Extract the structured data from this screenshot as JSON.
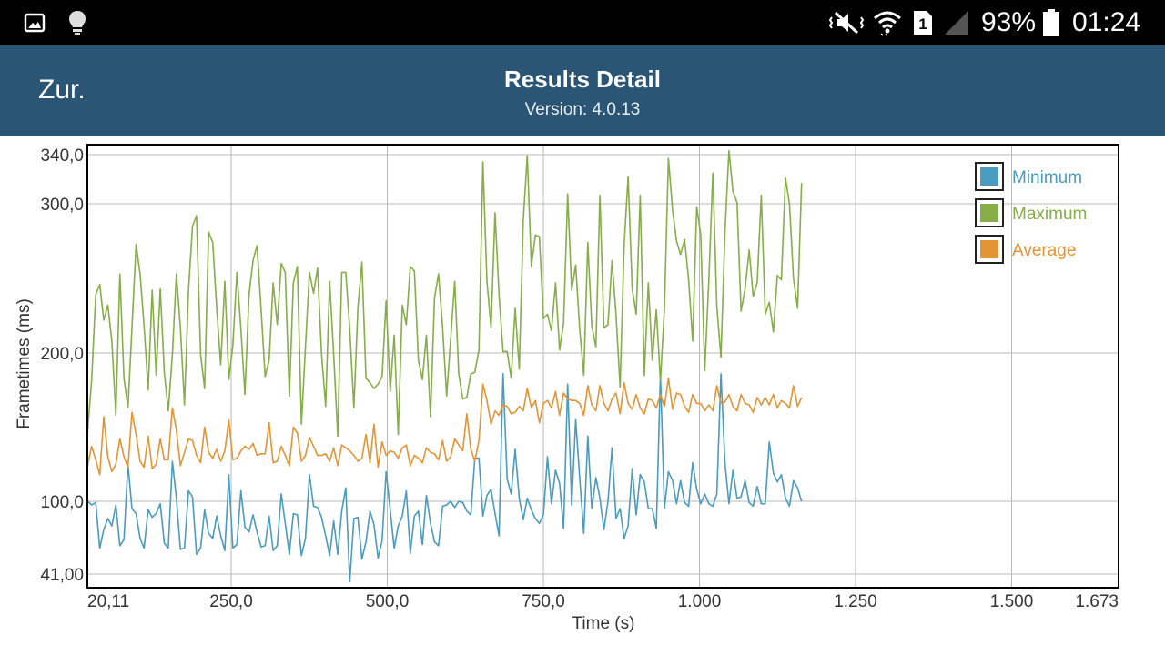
{
  "status_bar": {
    "battery": "93%",
    "time": "01:24",
    "icons": [
      "gallery-icon",
      "lightbulb-icon",
      "mute-vibrate-icon",
      "wifi-icon",
      "sim-1-icon",
      "signal-icon",
      "battery-icon"
    ],
    "sim_slot": "1"
  },
  "app_bar": {
    "back_label": "Zur.",
    "title": "Results Detail",
    "version": "Version: 4.0.13"
  },
  "chart_data": {
    "type": "line",
    "xlabel": "Time (s)",
    "ylabel": "Frametimes (ms)",
    "xlim": [
      20.11,
      1673
    ],
    "ylim": [
      32,
      345
    ],
    "x_ticks": [
      20.11,
      250,
      500,
      750,
      1000,
      1250,
      1500,
      1673
    ],
    "x_tick_labels": [
      "20,11",
      "250,0",
      "500,0",
      "750,0",
      "1.000",
      "1.250",
      "1.500",
      "1.673"
    ],
    "y_ticks": [
      41,
      100,
      200,
      300,
      340
    ],
    "y_tick_labels": [
      "41,00",
      "100,0",
      "200,0",
      "300,0",
      "340,0"
    ],
    "grid": true,
    "legend_position": "top-right",
    "x_start": 20.11,
    "x_step": 6.46,
    "series": [
      {
        "name": "Minimum",
        "color": "#4a9bbd",
        "values": [
          100,
          97,
          99,
          62,
          77,
          86,
          80,
          97,
          64,
          69,
          125,
          94,
          90,
          70,
          62,
          93,
          87,
          90,
          98,
          66,
          62,
          127,
          102,
          61,
          62,
          107,
          103,
          57,
          62,
          93,
          74,
          70,
          88,
          72,
          60,
          118,
          62,
          65,
          107,
          79,
          75,
          89,
          75,
          63,
          64,
          88,
          60,
          64,
          105,
          82,
          57,
          90,
          89,
          56,
          70,
          118,
          96,
          95,
          87,
          72,
          56,
          84,
          57,
          92,
          109,
          36,
          86,
          87,
          53,
          67,
          92,
          81,
          54,
          68,
          120,
          93,
          62,
          80,
          88,
          107,
          58,
          88,
          92,
          65,
          104,
          82,
          67,
          64,
          96,
          97,
          100,
          95,
          100,
          99,
          92,
          89,
          129,
          129,
          88,
          104,
          108,
          90,
          72,
          186,
          115,
          105,
          135,
          102,
          85,
          102,
          93,
          86,
          82,
          89,
          130,
          98,
          121,
          112,
          78,
          179,
          97,
          155,
          116,
          74,
          144,
          94,
          116,
          102,
          77,
          100,
          136,
          86,
          94,
          70,
          80,
          122,
          89,
          118,
          113,
          94,
          94,
          78,
          186,
          94,
          120,
          114,
          98,
          114,
          99,
          96,
          126,
          108,
          98,
          105,
          98,
          96,
          105,
          186,
          126,
          98,
          121,
          102,
          103,
          114,
          99,
          96,
          110,
          98,
          98,
          140,
          119,
          113,
          118,
          102,
          96,
          114,
          109,
          100
        ]
      },
      {
        "name": "Maximum",
        "color": "#86ad48",
        "values": [
          147,
          182,
          239,
          246,
          222,
          232,
          208,
          158,
          253,
          183,
          163,
          217,
          273,
          253,
          218,
          175,
          242,
          185,
          243,
          187,
          161,
          199,
          253,
          217,
          165,
          242,
          285,
          292,
          199,
          176,
          281,
          274,
          230,
          192,
          248,
          182,
          205,
          254,
          216,
          172,
          239,
          262,
          272,
          229,
          184,
          195,
          247,
          219,
          260,
          254,
          171,
          247,
          258,
          152,
          204,
          254,
          240,
          257,
          199,
          164,
          248,
          199,
          144,
          254,
          254,
          216,
          163,
          230,
          261,
          183,
          180,
          176,
          179,
          184,
          235,
          174,
          212,
          145,
          232,
          219,
          258,
          255,
          195,
          182,
          212,
          157,
          237,
          253,
          217,
          171,
          209,
          248,
          186,
          169,
          170,
          186,
          187,
          202,
          334,
          248,
          217,
          294,
          239,
          201,
          201,
          183,
          230,
          189,
          289,
          339,
          258,
          279,
          278,
          223,
          226,
          215,
          247,
          202,
          220,
          308,
          242,
          259,
          216,
          185,
          274,
          218,
          204,
          307,
          217,
          219,
          262,
          226,
          177,
          272,
          322,
          243,
          226,
          307,
          185,
          247,
          195,
          229,
          181,
          230,
          337,
          296,
          275,
          266,
          276,
          249,
          208,
          298,
          279,
          188,
          249,
          325,
          231,
          197,
          281,
          342,
          310,
          301,
          228,
          243,
          269,
          238,
          247,
          307,
          226,
          234,
          214,
          252,
          249,
          321,
          300,
          250,
          230,
          317
        ]
      },
      {
        "name": "Average",
        "color": "#e39535",
        "values": [
          124,
          137,
          128,
          118,
          157,
          130,
          120,
          125,
          142,
          130,
          123,
          160,
          145,
          127,
          123,
          144,
          122,
          125,
          142,
          128,
          128,
          163,
          148,
          124,
          133,
          142,
          141,
          131,
          126,
          150,
          133,
          129,
          135,
          127,
          134,
          155,
          128,
          129,
          134,
          137,
          135,
          139,
          131,
          132,
          132,
          153,
          126,
          127,
          137,
          131,
          124,
          150,
          146,
          127,
          131,
          143,
          137,
          131,
          131,
          132,
          127,
          136,
          124,
          138,
          136,
          134,
          131,
          127,
          129,
          145,
          126,
          152,
          123,
          140,
          131,
          134,
          133,
          129,
          136,
          138,
          124,
          131,
          129,
          126,
          136,
          133,
          132,
          128,
          141,
          127,
          130,
          142,
          138,
          134,
          159,
          135,
          127,
          141,
          179,
          168,
          152,
          161,
          158,
          165,
          164,
          159,
          160,
          164,
          161,
          176,
          163,
          168,
          153,
          166,
          168,
          163,
          174,
          158,
          173,
          169,
          168,
          168,
          166,
          158,
          178,
          165,
          161,
          178,
          166,
          161,
          169,
          173,
          159,
          180,
          166,
          162,
          172,
          163,
          159,
          169,
          168,
          163,
          172,
          164,
          183,
          162,
          173,
          172,
          164,
          160,
          172,
          166,
          166,
          161,
          165,
          161,
          178,
          166,
          167,
          172,
          164,
          161,
          172,
          166,
          165,
          160,
          170,
          165,
          170,
          165,
          172,
          163,
          168,
          166,
          163,
          178,
          164,
          170
        ]
      }
    ]
  }
}
